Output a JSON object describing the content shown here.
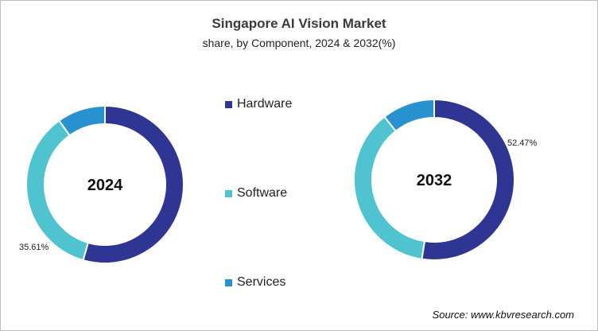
{
  "chart_data": [
    {
      "type": "pie",
      "title": "Singapore AI Vision Market",
      "subtitle": "share, by Component, 2024 & 2032(%)",
      "center_label": "2024",
      "categories": [
        "Hardware",
        "Software",
        "Services"
      ],
      "values": [
        54.49,
        35.61,
        9.9
      ],
      "data_labels": {
        "Software": "35.61%"
      },
      "donut": true
    },
    {
      "type": "pie",
      "center_label": "2032",
      "categories": [
        "Hardware",
        "Software",
        "Services"
      ],
      "values": [
        52.47,
        36.9,
        10.63
      ],
      "data_labels": {
        "Hardware": "52.47%"
      },
      "donut": true
    }
  ],
  "legend": {
    "placement": "center",
    "items": [
      {
        "label": "Hardware",
        "color": "#2e3592"
      },
      {
        "label": "Software",
        "color": "#4fc4d0"
      },
      {
        "label": "Services",
        "color": "#2892d0"
      }
    ]
  },
  "source": "Source: www.kbvresearch.com"
}
